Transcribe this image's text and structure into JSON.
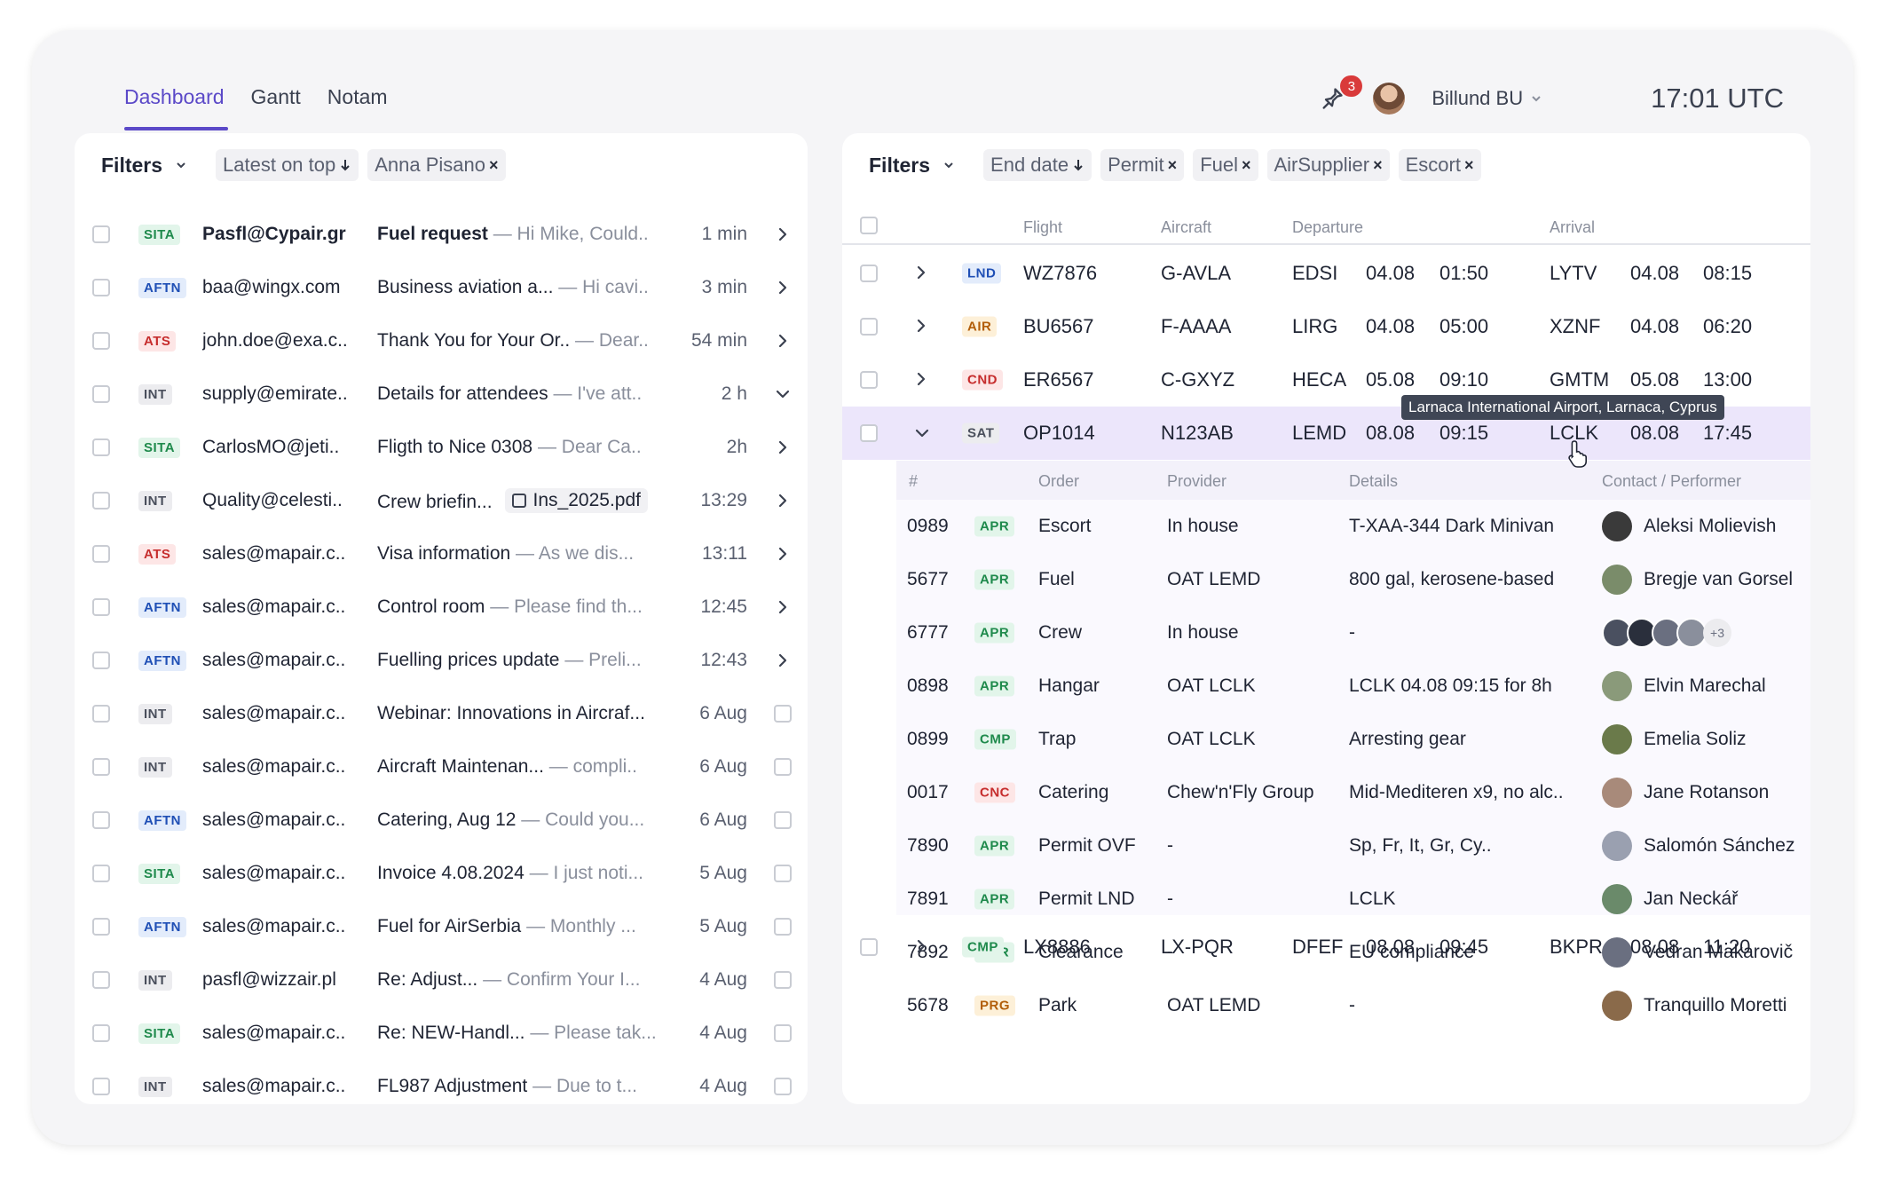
{
  "header": {
    "tabs": [
      {
        "label": "Dashboard"
      },
      {
        "label": "Gantt"
      },
      {
        "label": "Notam"
      }
    ],
    "notification_count": "3",
    "workspace": "Billund BU",
    "clock": "17:01 UTC"
  },
  "left": {
    "filters_label": "Filters",
    "chips": [
      {
        "label": "Latest on top"
      },
      {
        "label": "Anna Pisano"
      }
    ],
    "emails": [
      {
        "tag": "SITA",
        "from": "Pasfl@Cypair.gr",
        "subject": "Fuel request",
        "preview": "— Hi Mike, Could..",
        "time": "1 min"
      },
      {
        "tag": "AFTN",
        "from": "baa@wingx.com",
        "subject": "Business aviation a...",
        "preview": "— Hi cavi..",
        "time": "3 min"
      },
      {
        "tag": "ATS",
        "from": "john.doe@exa.c..",
        "subject": "Thank You for Your Or..",
        "preview": "— Dear..",
        "time": "54 min"
      },
      {
        "tag": "INT",
        "from": "supply@emirate..",
        "subject": "Details for attendees",
        "preview": "— I've att..",
        "time": "2 h"
      },
      {
        "tag": "SITA",
        "from": "CarlosMO@jeti..",
        "subject": "Fligth to Nice 0308",
        "preview": "— Dear Ca..",
        "time": "2h"
      },
      {
        "tag": "INT",
        "from": "Quality@celesti..",
        "subject": "Crew briefin...",
        "attachment": "Ins_2025.pdf",
        "time": "13:29"
      },
      {
        "tag": "ATS",
        "from": "sales@mapair.c..",
        "subject": "Visa information",
        "preview": "— As we dis...",
        "time": "13:11"
      },
      {
        "tag": "AFTN",
        "from": "sales@mapair.c..",
        "subject": "Control room",
        "preview": "— Please find th...",
        "time": "12:45"
      },
      {
        "tag": "AFTN",
        "from": "sales@mapair.c..",
        "subject": "Fuelling prices update",
        "preview": "— Preli...",
        "time": "12:43"
      },
      {
        "tag": "INT",
        "from": "sales@mapair.c..",
        "subject": "Webinar: Innovations in Aircraf...",
        "preview": "",
        "time": "6 Aug"
      },
      {
        "tag": "INT",
        "from": "sales@mapair.c..",
        "subject": "Aircraft Maintenan...",
        "preview": "— compli..",
        "time": "6 Aug"
      },
      {
        "tag": "AFTN",
        "from": "sales@mapair.c..",
        "subject": "Catering, Aug 12",
        "preview": "— Could you...",
        "time": "6 Aug"
      },
      {
        "tag": "SITA",
        "from": "sales@mapair.c..",
        "subject": "Invoice 4.08.2024",
        "preview": "— I just noti...",
        "time": "5 Aug"
      },
      {
        "tag": "AFTN",
        "from": "sales@mapair.c..",
        "subject": "Fuel for AirSerbia",
        "preview": "— Monthly ...",
        "time": "5 Aug"
      },
      {
        "tag": "INT",
        "from": "pasfl@wizzair.pl",
        "subject": "Re: Adjust...",
        "preview": "— Confirm Your I...",
        "time": "4 Aug"
      },
      {
        "tag": "SITA",
        "from": "sales@mapair.c..",
        "subject": "Re: NEW-Handl...",
        "preview": "— Please tak...",
        "time": "4 Aug"
      },
      {
        "tag": "INT",
        "from": "sales@mapair.c..",
        "subject": "FL987 Adjustment",
        "preview": "— Due to t...",
        "time": "4 Aug"
      }
    ]
  },
  "right": {
    "filters_label": "Filters",
    "chips": [
      {
        "label": "End date"
      },
      {
        "label": "Permit"
      },
      {
        "label": "Fuel"
      },
      {
        "label": "AirSupplier"
      },
      {
        "label": "Escort"
      }
    ],
    "columns": {
      "flight": "Flight",
      "aircraft": "Aircraft",
      "departure": "Departure",
      "arrival": "Arrival"
    },
    "flights": [
      {
        "tag": "LND",
        "flight": "WZ7876",
        "aircraft": "G-AVLA",
        "dep": "EDSI",
        "dep_date": "04.08",
        "dep_time": "01:50",
        "arr": "LYTV",
        "arr_date": "04.08",
        "arr_time": "08:15"
      },
      {
        "tag": "AIR",
        "flight": "BU6567",
        "aircraft": "F-AAAA",
        "dep": "LIRG",
        "dep_date": "04.08",
        "dep_time": "05:00",
        "arr": "XZNF",
        "arr_date": "04.08",
        "arr_time": "06:20"
      },
      {
        "tag": "CND",
        "flight": "ER6567",
        "aircraft": "C-GXYZ",
        "dep": "HECA",
        "dep_date": "05.08",
        "dep_time": "09:10",
        "arr": "GMTM",
        "arr_date": "05.08",
        "arr_time": "13:00"
      },
      {
        "tag": "SAT",
        "flight": "OP1014",
        "aircraft": "N123AB",
        "dep": "LEMD",
        "dep_date": "08.08",
        "dep_time": "09:15",
        "arr": "LCLK",
        "arr_date": "08.08",
        "arr_time": "17:45"
      }
    ],
    "last_flight": {
      "tag": "CMP",
      "flight": "LX8886",
      "aircraft": "LX-PQR",
      "dep": "DFEF",
      "dep_date": "08.08",
      "dep_time": "09:45",
      "arr": "BKPR",
      "arr_date": "08.08",
      "arr_time": "11:20"
    },
    "tooltip": "Larnaca International Airport, Larnaca, Cyprus",
    "sub_columns": {
      "num": "#",
      "order": "Order",
      "provider": "Provider",
      "details": "Details",
      "contact": "Contact / Performer"
    },
    "orders": [
      {
        "num": "0989",
        "tag": "APR",
        "order": "Escort",
        "provider": "In house",
        "details": "T-XAA-344 Dark Minivan",
        "contact": "Aleksi Molievish",
        "avatar_color": "#3a3a3a"
      },
      {
        "num": "5677",
        "tag": "APR",
        "order": "Fuel",
        "provider": "OAT LEMD",
        "details": "800 gal, kerosene-based",
        "contact": "Bregje van Gorsel",
        "avatar_color": "#7a8c6a"
      },
      {
        "num": "6777",
        "tag": "APR",
        "order": "Crew",
        "provider": "In house",
        "details": "-",
        "contact": "",
        "group_more": "+3"
      },
      {
        "num": "0898",
        "tag": "APR",
        "order": "Hangar",
        "provider": "OAT LCLK",
        "details": "LCLK  04.08 09:15 for 8h",
        "contact": "Elvin Marechal",
        "avatar_color": "#8a9a7a"
      },
      {
        "num": "0899",
        "tag": "CMP",
        "order": "Trap",
        "provider": "OAT LCLK",
        "details": "Arresting gear",
        "contact": "Emelia Soliz",
        "avatar_color": "#6a7a4a"
      },
      {
        "num": "0017",
        "tag": "CNC",
        "order": "Catering",
        "provider": "Chew'n'Fly Group",
        "details": "Mid-Mediteren x9, no alc..",
        "contact": "Jane Rotanson",
        "avatar_color": "#a88a7a"
      },
      {
        "num": "7890",
        "tag": "APR",
        "order": "Permit OVF",
        "provider": "-",
        "details": "Sp, Fr, It, Gr, Cy..",
        "contact": "Salomón Sánchez",
        "avatar_color": "#9aa0b0"
      },
      {
        "num": "7891",
        "tag": "APR",
        "order": "Permit LND",
        "provider": "-",
        "details": "LCLK",
        "contact": "Jan Neckář",
        "avatar_color": "#6a8a6a"
      },
      {
        "num": "7892",
        "tag": "APR",
        "order": "Clearance",
        "provider": "-",
        "details": "EU compliance",
        "contact": "Vedran Makarovič",
        "avatar_color": "#6a6f80"
      },
      {
        "num": "5678",
        "tag": "PRG",
        "order": "Park",
        "provider": "OAT LEMD",
        "details": "-",
        "contact": "Tranquillo Moretti",
        "avatar_color": "#8a6a4a"
      }
    ]
  },
  "colors": {
    "accent": "#5b49c8",
    "selected_row": "#ece6fb",
    "badge": "#d93a3a"
  }
}
